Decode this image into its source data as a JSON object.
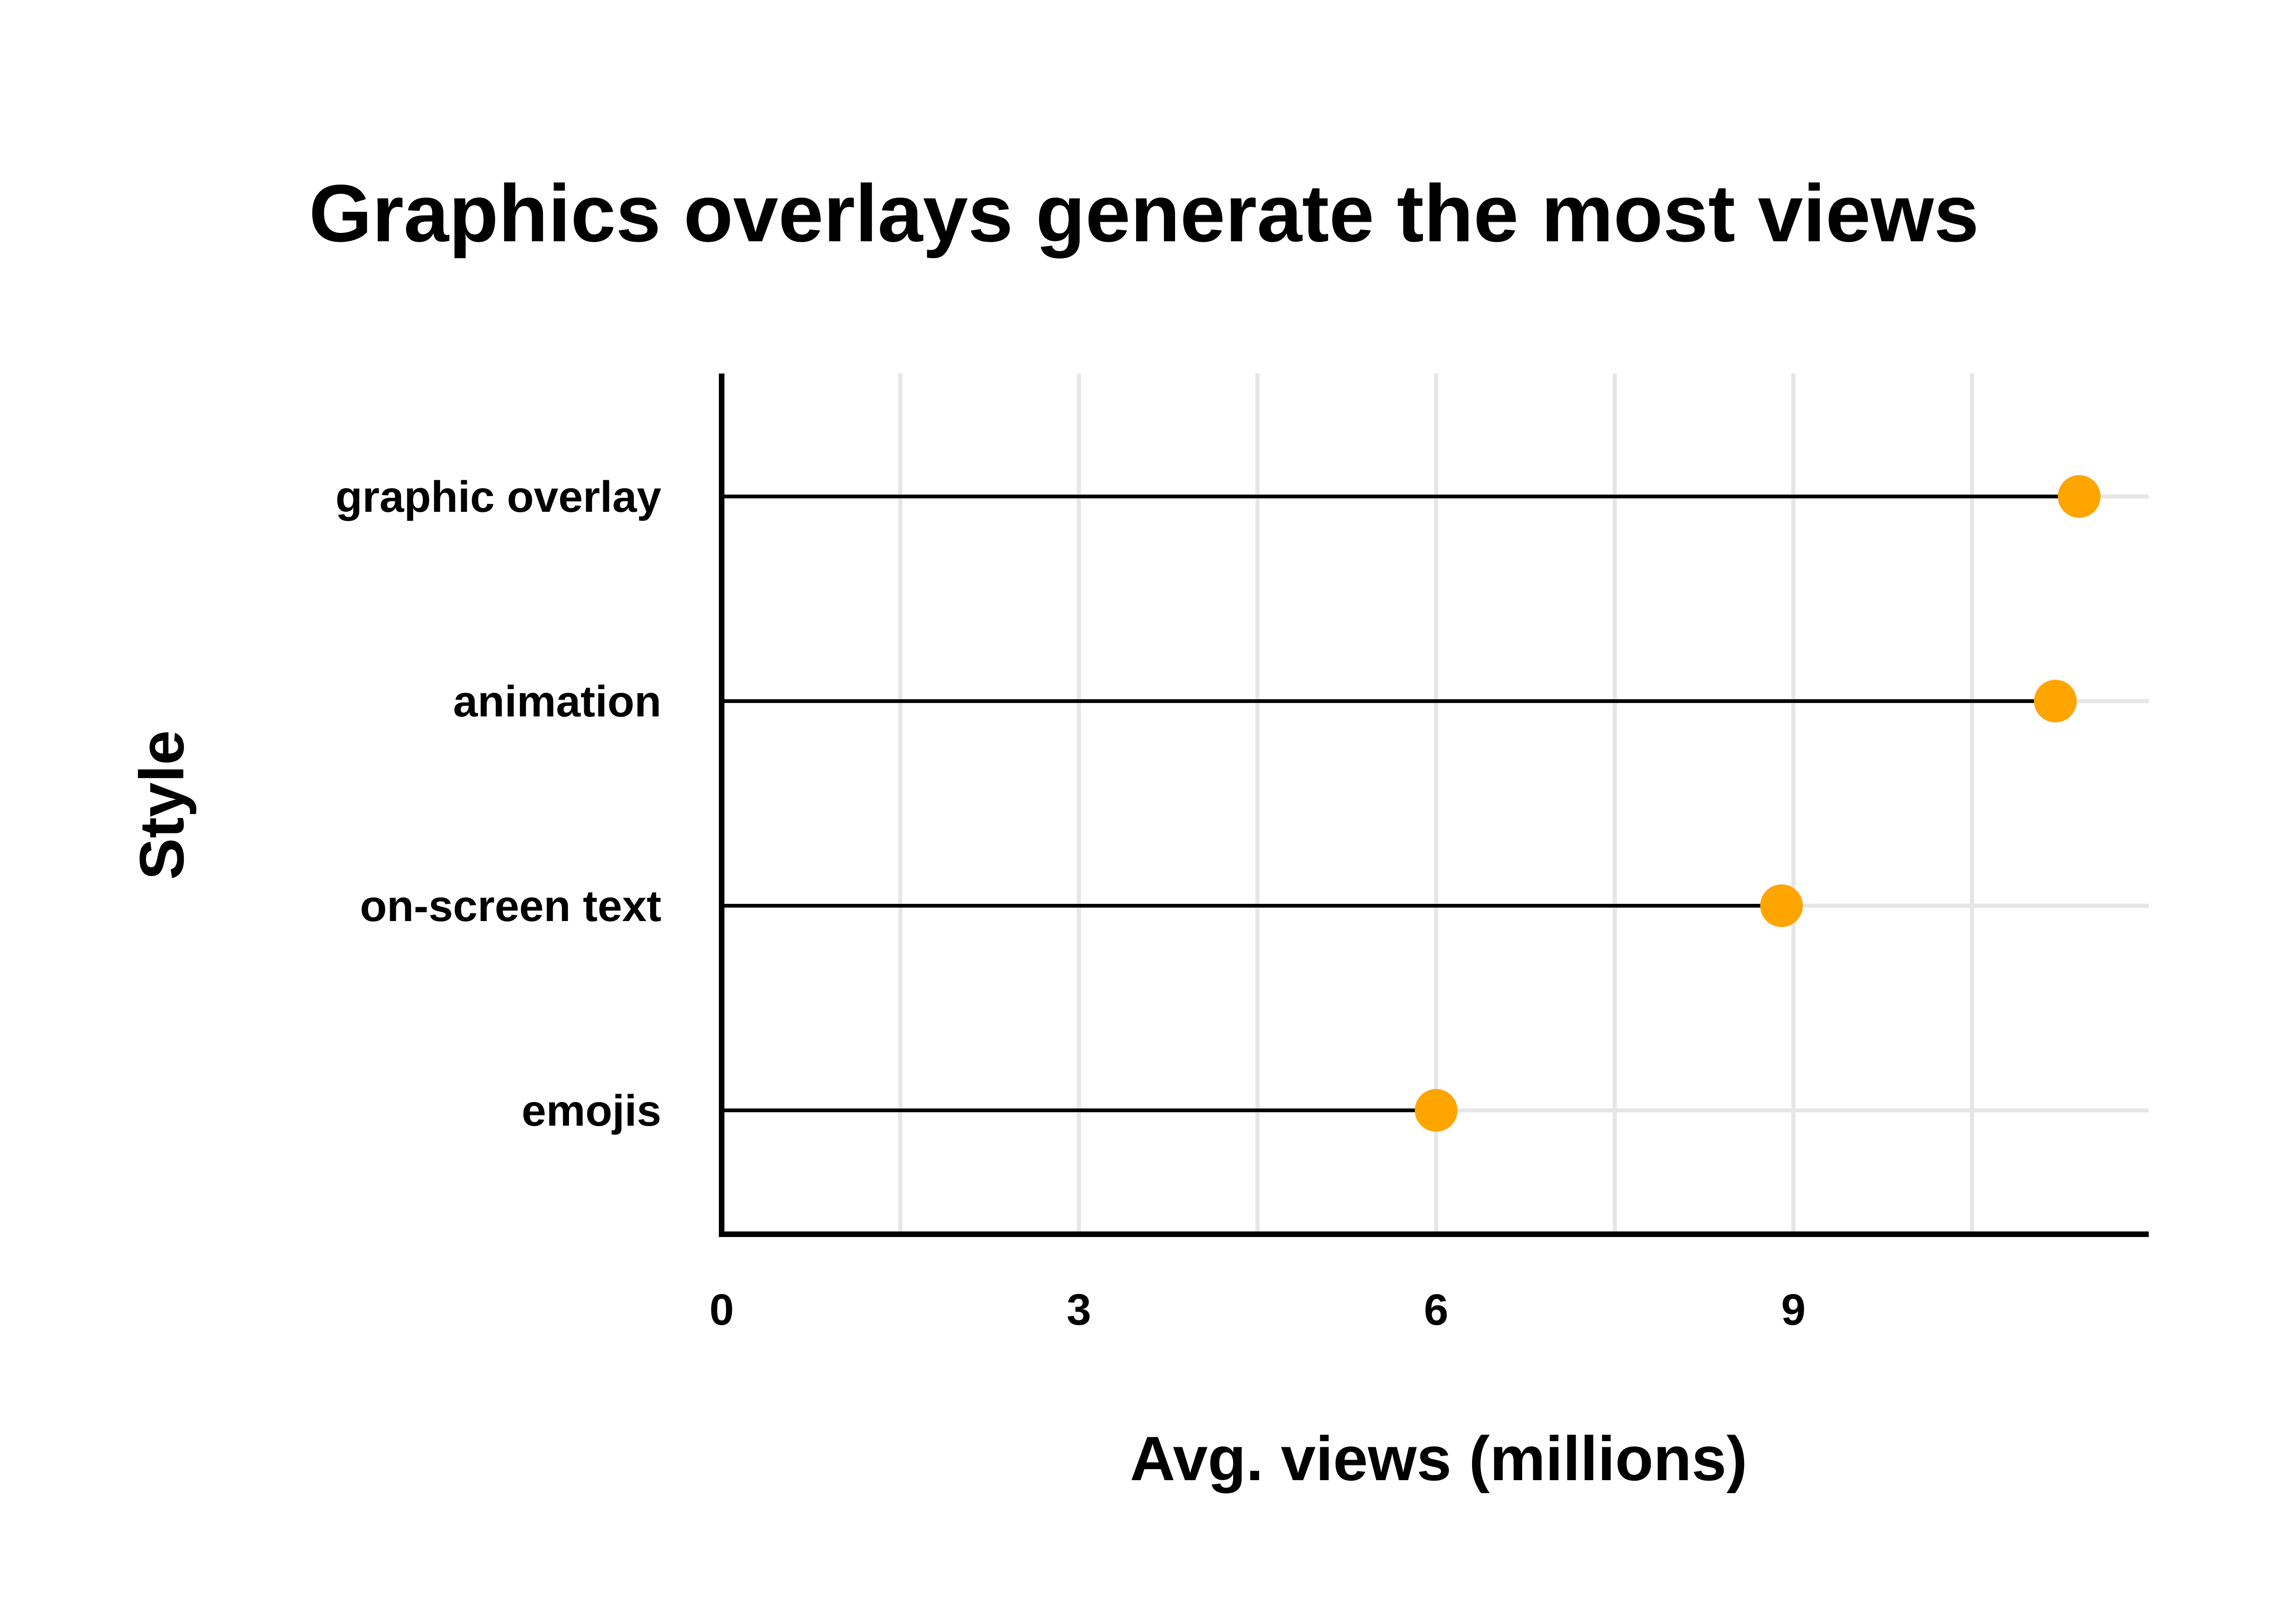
{
  "chart_data": {
    "type": "lollipop",
    "title": "Graphics overlays generate the most views",
    "xlabel": "Avg. views (millions)",
    "ylabel": "Style",
    "xlim": [
      0,
      12
    ],
    "x_ticks": [
      0,
      3,
      6,
      9
    ],
    "grid": true,
    "categories": [
      "graphic overlay",
      "animation",
      "on-screen text",
      "emojis"
    ],
    "values": [
      11.4,
      11.2,
      8.9,
      6.0
    ]
  },
  "colors": {
    "point": "#FFA500",
    "stem": "#000000",
    "grid": "#E6E6E6",
    "axis": "#000000",
    "background": "#FFFFFF"
  }
}
